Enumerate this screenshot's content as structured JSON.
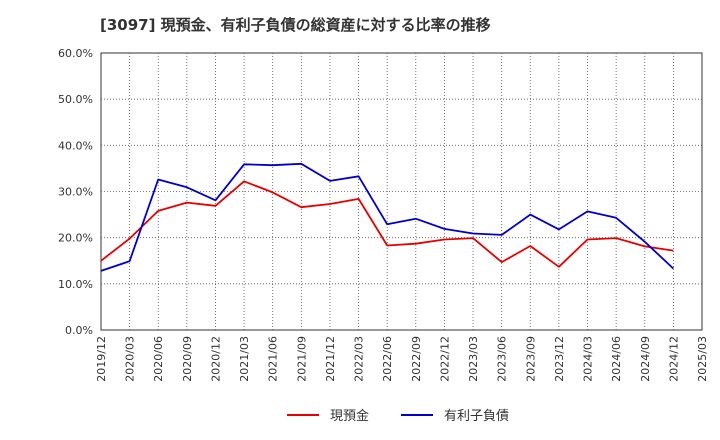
{
  "chart_data": {
    "type": "line",
    "title": "[3097]  現預金、有利子負債の総資産に対する比率の推移",
    "xlabel": "",
    "ylabel": "",
    "ylim": [
      0,
      60
    ],
    "y_ticks": [
      "0.0%",
      "10.0%",
      "20.0%",
      "30.0%",
      "40.0%",
      "50.0%",
      "60.0%"
    ],
    "y_tick_values": [
      0,
      10,
      20,
      30,
      40,
      50,
      60
    ],
    "x": [
      "2019/12",
      "2020/03",
      "2020/06",
      "2020/09",
      "2020/12",
      "2021/03",
      "2021/06",
      "2021/09",
      "2021/12",
      "2022/03",
      "2022/06",
      "2022/09",
      "2022/12",
      "2023/03",
      "2023/06",
      "2023/09",
      "2023/12",
      "2024/03",
      "2024/06",
      "2024/09",
      "2024/12",
      "2025/03"
    ],
    "grid": true,
    "legend_position": "bottom-center",
    "series": [
      {
        "name": "現預金",
        "color": "#e60000",
        "values": [
          15.0,
          19.8,
          25.8,
          27.6,
          26.9,
          32.2,
          29.8,
          26.6,
          27.3,
          28.4,
          18.3,
          18.7,
          19.6,
          19.9,
          14.7,
          18.2,
          13.7,
          19.6,
          19.9,
          18.1,
          17.2,
          null
        ]
      },
      {
        "name": "有利子負債",
        "color": "#0000cc",
        "values": [
          12.8,
          14.9,
          32.6,
          30.9,
          28.1,
          35.9,
          35.7,
          36.0,
          32.3,
          33.3,
          22.9,
          24.1,
          21.9,
          20.9,
          20.6,
          25.0,
          21.8,
          25.7,
          24.3,
          19.1,
          13.3,
          null
        ]
      }
    ]
  }
}
